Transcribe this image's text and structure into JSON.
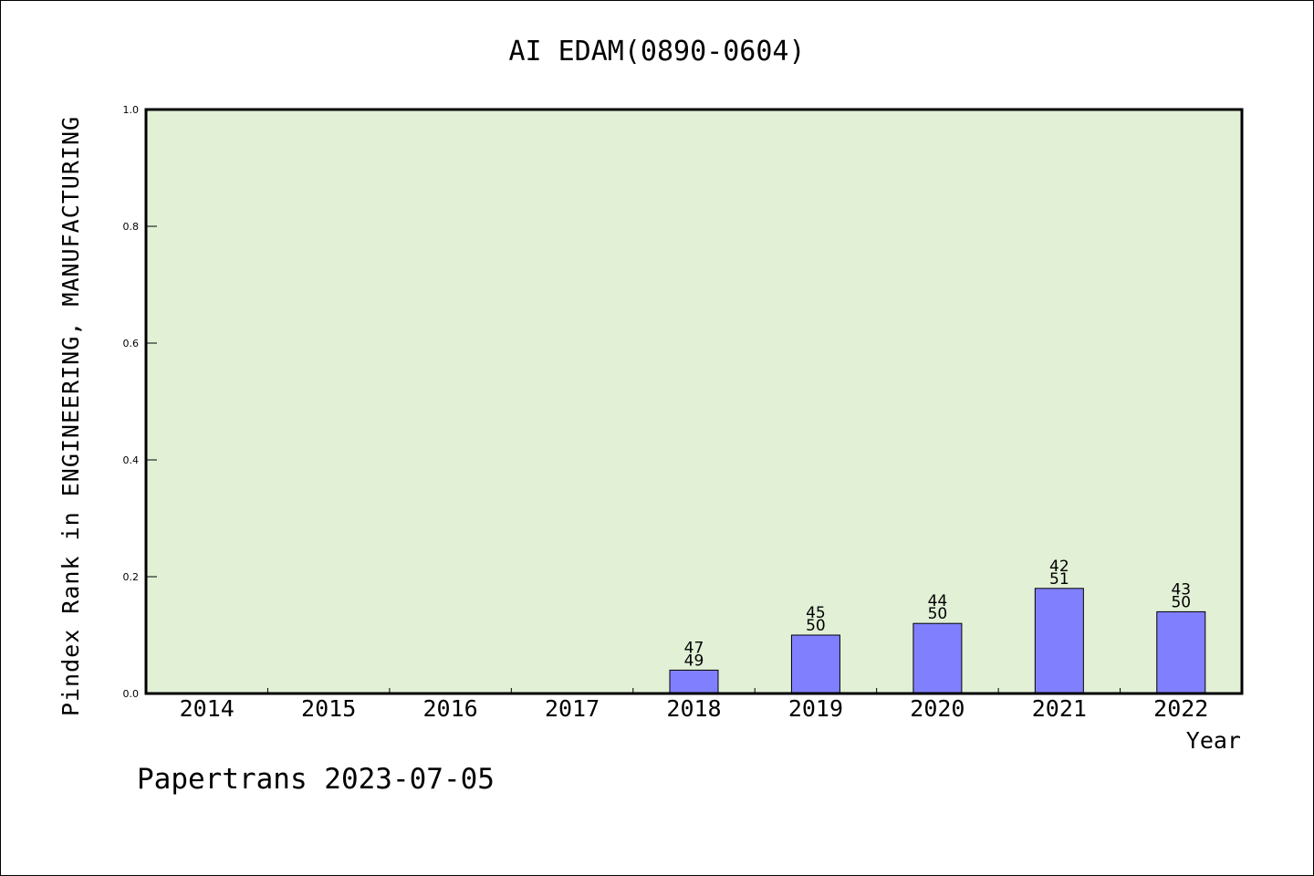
{
  "chart_data": {
    "type": "bar",
    "title": "AI EDAM(0890-0604)",
    "xlabel": "Year",
    "ylabel": "Pindex Rank in ENGINEERING, MANUFACTURING",
    "categories": [
      "2014",
      "2015",
      "2016",
      "2017",
      "2018",
      "2019",
      "2020",
      "2021",
      "2022"
    ],
    "values": [
      0,
      0,
      0,
      0,
      0.04,
      0.1,
      0.12,
      0.18,
      0.14
    ],
    "labels_top": [
      "",
      "",
      "",
      "",
      "47",
      "45",
      "44",
      "42",
      "43"
    ],
    "labels_bottom": [
      "",
      "",
      "",
      "",
      "49",
      "50",
      "50",
      "51",
      "50"
    ],
    "ylim": [
      0,
      1.0
    ],
    "yticks": [
      "0.0",
      "0.2",
      "0.4",
      "0.6",
      "0.8",
      "1.0"
    ],
    "grid": false,
    "colors": {
      "bar": "#8080ff",
      "plot_bg": "#e2f0d6"
    }
  },
  "footer": "Papertrans 2023-07-05"
}
